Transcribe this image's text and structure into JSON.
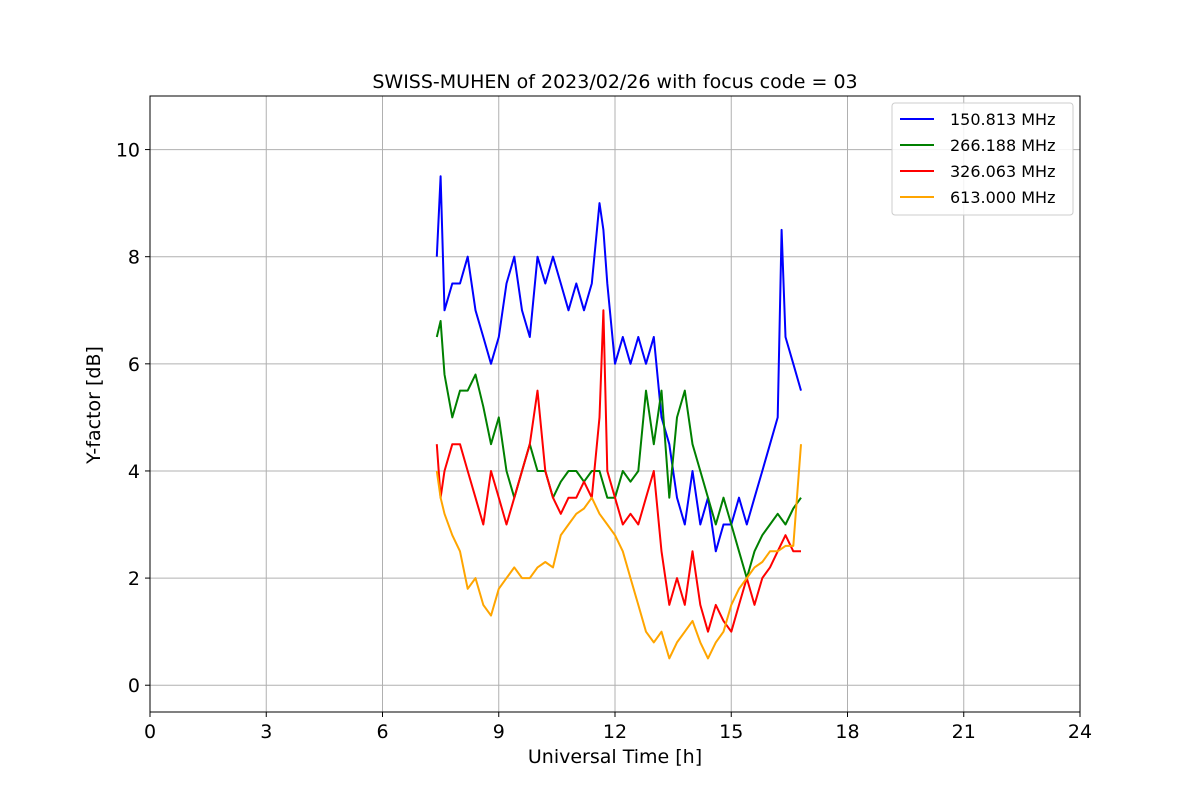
{
  "chart_data": {
    "type": "line",
    "title": "SWISS-MUHEN of 2023/02/26 with focus code = 03",
    "xlabel": "Universal Time [h]",
    "ylabel": "Y-factor [dB]",
    "xlim": [
      0,
      24
    ],
    "ylim": [
      -0.5,
      11
    ],
    "xticks": [
      0,
      3,
      6,
      9,
      12,
      15,
      18,
      21,
      24
    ],
    "yticks": [
      0,
      2,
      4,
      6,
      8,
      10
    ],
    "grid": true,
    "legend_position": "top-right",
    "series": [
      {
        "name": "150.813 MHz",
        "color": "#0000ff",
        "x": [
          7.4,
          7.5,
          7.6,
          7.8,
          8.0,
          8.2,
          8.4,
          8.6,
          8.8,
          9.0,
          9.2,
          9.4,
          9.6,
          9.8,
          10.0,
          10.2,
          10.4,
          10.6,
          10.8,
          11.0,
          11.2,
          11.4,
          11.6,
          11.7,
          11.8,
          12.0,
          12.2,
          12.4,
          12.6,
          12.8,
          13.0,
          13.2,
          13.4,
          13.6,
          13.8,
          14.0,
          14.2,
          14.4,
          14.6,
          14.8,
          15.0,
          15.2,
          15.4,
          15.6,
          15.8,
          16.0,
          16.2,
          16.3,
          16.4,
          16.6,
          16.8
        ],
        "y": [
          8.0,
          9.5,
          7.0,
          7.5,
          7.5,
          8.0,
          7.0,
          6.5,
          6.0,
          6.5,
          7.5,
          8.0,
          7.0,
          6.5,
          8.0,
          7.5,
          8.0,
          7.5,
          7.0,
          7.5,
          7.0,
          7.5,
          9.0,
          8.5,
          7.5,
          6.0,
          6.5,
          6.0,
          6.5,
          6.0,
          6.5,
          5.0,
          4.5,
          3.5,
          3.0,
          4.0,
          3.0,
          3.5,
          2.5,
          3.0,
          3.0,
          3.5,
          3.0,
          3.5,
          4.0,
          4.5,
          5.0,
          8.5,
          6.5,
          6.0,
          5.5
        ]
      },
      {
        "name": "266.188 MHz",
        "color": "#008000",
        "x": [
          7.4,
          7.5,
          7.6,
          7.8,
          8.0,
          8.2,
          8.4,
          8.6,
          8.8,
          9.0,
          9.2,
          9.4,
          9.6,
          9.8,
          10.0,
          10.2,
          10.4,
          10.6,
          10.8,
          11.0,
          11.2,
          11.4,
          11.6,
          11.8,
          12.0,
          12.2,
          12.4,
          12.6,
          12.8,
          13.0,
          13.2,
          13.4,
          13.6,
          13.8,
          14.0,
          14.2,
          14.4,
          14.6,
          14.8,
          15.0,
          15.2,
          15.4,
          15.6,
          15.8,
          16.0,
          16.2,
          16.4,
          16.6,
          16.8
        ],
        "y": [
          6.5,
          6.8,
          5.8,
          5.0,
          5.5,
          5.5,
          5.8,
          5.2,
          4.5,
          5.0,
          4.0,
          3.5,
          4.0,
          4.5,
          4.0,
          4.0,
          3.5,
          3.8,
          4.0,
          4.0,
          3.8,
          4.0,
          4.0,
          3.5,
          3.5,
          4.0,
          3.8,
          4.0,
          5.5,
          4.5,
          5.5,
          3.5,
          5.0,
          5.5,
          4.5,
          4.0,
          3.5,
          3.0,
          3.5,
          3.0,
          2.5,
          2.0,
          2.5,
          2.8,
          3.0,
          3.2,
          3.0,
          3.3,
          3.5
        ]
      },
      {
        "name": "326.063 MHz",
        "color": "#ff0000",
        "x": [
          7.4,
          7.5,
          7.6,
          7.8,
          8.0,
          8.2,
          8.4,
          8.6,
          8.8,
          9.0,
          9.2,
          9.4,
          9.6,
          9.8,
          10.0,
          10.2,
          10.4,
          10.6,
          10.8,
          11.0,
          11.2,
          11.4,
          11.6,
          11.7,
          11.8,
          12.0,
          12.2,
          12.4,
          12.6,
          12.8,
          13.0,
          13.2,
          13.4,
          13.6,
          13.8,
          14.0,
          14.2,
          14.4,
          14.6,
          14.8,
          15.0,
          15.2,
          15.4,
          15.6,
          15.8,
          16.0,
          16.2,
          16.4,
          16.6,
          16.8
        ],
        "y": [
          4.5,
          3.5,
          4.0,
          4.5,
          4.5,
          4.0,
          3.5,
          3.0,
          4.0,
          3.5,
          3.0,
          3.5,
          4.0,
          4.5,
          5.5,
          4.0,
          3.5,
          3.2,
          3.5,
          3.5,
          3.8,
          3.5,
          5.0,
          7.0,
          4.0,
          3.5,
          3.0,
          3.2,
          3.0,
          3.5,
          4.0,
          2.5,
          1.5,
          2.0,
          1.5,
          2.5,
          1.5,
          1.0,
          1.5,
          1.2,
          1.0,
          1.5,
          2.0,
          1.5,
          2.0,
          2.2,
          2.5,
          2.8,
          2.5,
          2.5
        ]
      },
      {
        "name": "613.000 MHz",
        "color": "#ffa500",
        "x": [
          7.4,
          7.5,
          7.6,
          7.8,
          8.0,
          8.2,
          8.4,
          8.6,
          8.8,
          9.0,
          9.2,
          9.4,
          9.6,
          9.8,
          10.0,
          10.2,
          10.4,
          10.6,
          10.8,
          11.0,
          11.2,
          11.4,
          11.6,
          11.8,
          12.0,
          12.2,
          12.4,
          12.6,
          12.8,
          13.0,
          13.2,
          13.4,
          13.6,
          13.8,
          14.0,
          14.2,
          14.4,
          14.6,
          14.8,
          15.0,
          15.2,
          15.4,
          15.6,
          15.8,
          16.0,
          16.2,
          16.4,
          16.6,
          16.8
        ],
        "y": [
          4.0,
          3.5,
          3.2,
          2.8,
          2.5,
          1.8,
          2.0,
          1.5,
          1.3,
          1.8,
          2.0,
          2.2,
          2.0,
          2.0,
          2.2,
          2.3,
          2.2,
          2.8,
          3.0,
          3.2,
          3.3,
          3.5,
          3.2,
          3.0,
          2.8,
          2.5,
          2.0,
          1.5,
          1.0,
          0.8,
          1.0,
          0.5,
          0.8,
          1.0,
          1.2,
          0.8,
          0.5,
          0.8,
          1.0,
          1.5,
          1.8,
          2.0,
          2.2,
          2.3,
          2.5,
          2.5,
          2.6,
          2.6,
          4.5
        ]
      }
    ]
  }
}
